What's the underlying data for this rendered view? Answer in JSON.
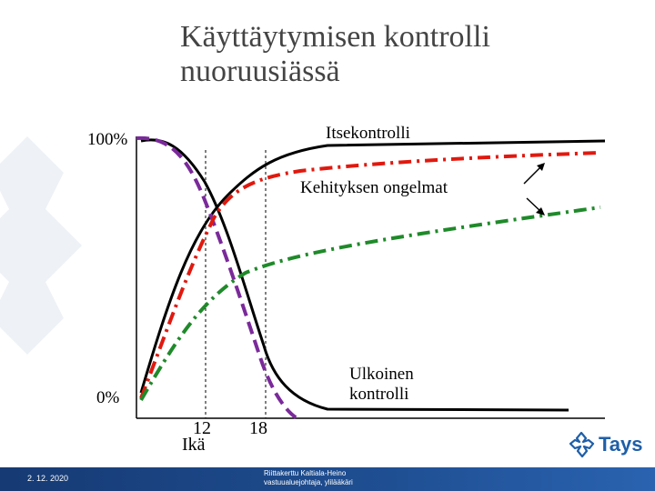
{
  "slide": {
    "title_line1": "Käyttäytymisen kontrolli",
    "title_line2": "nuoruusiässä"
  },
  "chart": {
    "y_top_label": "100%",
    "y_bottom_label": "0%",
    "x_labels": [
      "12",
      "18"
    ],
    "x_axis_label": "Ikä",
    "curve_labels": {
      "self_control": "Itsekontrolli",
      "developmental_problems": "Kehityksen ongelmat",
      "external_control_line1": "Ulkoinen",
      "external_control_line2": "kontrolli"
    },
    "colors": {
      "self_control": "#000000",
      "external_control": "#000000",
      "problems_red": "#e0190f",
      "problems_green": "#1f8a2a",
      "purple": "#7a2a9a"
    }
  },
  "chart_data": {
    "type": "line",
    "xlabel": "Ikä",
    "ylabel": "",
    "ytick_labels": [
      "0%",
      "100%"
    ],
    "x_markers": [
      12,
      18
    ],
    "series": [
      {
        "name": "Itsekontrolli",
        "style": "solid",
        "color": "#000000"
      },
      {
        "name": "Ulkoinen kontrolli",
        "style": "solid",
        "color": "#000000"
      },
      {
        "name": "Kehityksen ongelmat",
        "style": "dash-dot",
        "color": "#e0190f"
      },
      {
        "name": "Kehityksen ongelmat",
        "style": "dash-dot",
        "color": "#1f8a2a"
      },
      {
        "name": "",
        "style": "dashed",
        "color": "#7a2a9a"
      }
    ]
  },
  "footer": {
    "date": "2. 12. 2020",
    "credit_line1": "Riittakerttu Kaltiala-Heino",
    "credit_line2": "vastuualuejohtaja, ylilääkäri"
  },
  "logo": {
    "text": "Tays",
    "icon": "tays-snowflake-icon",
    "color": "#1f5fa8"
  }
}
